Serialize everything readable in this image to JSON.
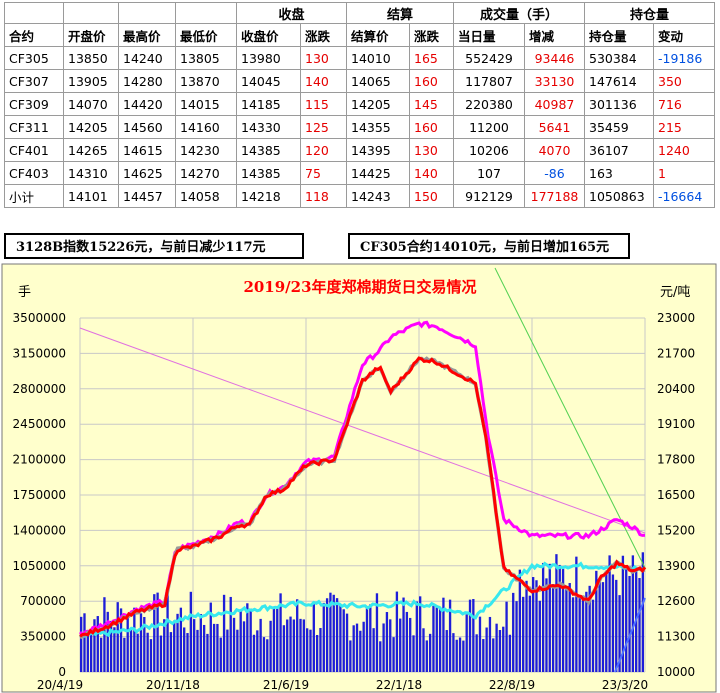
{
  "table": {
    "group_headers": [
      "收盘",
      "结算",
      "成交量（手）",
      "持仓量"
    ],
    "columns": [
      "合约",
      "开盘价",
      "最高价",
      "最低价",
      "收盘价",
      "涨跌",
      "结算价",
      "涨跌",
      "当日量",
      "增减",
      "持仓量",
      "变动"
    ],
    "rows": [
      [
        "CF305",
        "13850",
        "14240",
        "13805",
        "13980",
        "130",
        "14010",
        "165",
        "552429",
        "93446",
        "530384",
        "-19186"
      ],
      [
        "CF307",
        "13905",
        "14280",
        "13870",
        "14045",
        "140",
        "14065",
        "160",
        "117807",
        "33130",
        "147614",
        "350"
      ],
      [
        "CF309",
        "14070",
        "14420",
        "14015",
        "14185",
        "115",
        "14205",
        "145",
        "220380",
        "40987",
        "301136",
        "716"
      ],
      [
        "CF311",
        "14205",
        "14560",
        "14160",
        "14330",
        "125",
        "14355",
        "160",
        "11200",
        "5641",
        "35459",
        "215"
      ],
      [
        "CF401",
        "14265",
        "14615",
        "14230",
        "14385",
        "120",
        "14395",
        "130",
        "10206",
        "4070",
        "36107",
        "1240"
      ],
      [
        "CF403",
        "14310",
        "14625",
        "14270",
        "14385",
        "75",
        "14425",
        "140",
        "107",
        "-86",
        "163",
        "1"
      ],
      [
        "小计",
        "14101",
        "14457",
        "14058",
        "14218",
        "118",
        "14243",
        "150",
        "912129",
        "177188",
        "1050863",
        "-16664"
      ]
    ]
  },
  "notes": {
    "left": "3128B指数15226元，与前日减少117元",
    "right": "CF305合约14010元，与前日增加165元"
  },
  "chart_data": {
    "type": "line",
    "title": "2019/23年度郑棉期货日交易情况",
    "ylabel_left": "手",
    "ylabel_right": "元/吨",
    "left_ylim": [
      0,
      3500000
    ],
    "left_ticks": [
      "3500000",
      "3150000",
      "2800000",
      "2450000",
      "2100000",
      "1750000",
      "1400000",
      "1050000",
      "700000",
      "350000",
      "0"
    ],
    "right_ylim": [
      10000,
      23000
    ],
    "right_ticks": [
      "23000",
      "21700",
      "20400",
      "19100",
      "17800",
      "16500",
      "15200",
      "13900",
      "12600",
      "11300",
      "10000"
    ],
    "x_labels": [
      "20/4/19",
      "20/11/18",
      "21/6/19",
      "22/1/18",
      "22/8/19",
      "23/3/20"
    ],
    "grid": true,
    "colors": {
      "background": "#ffffcc",
      "volume_bars": "#1e1ed8",
      "close_price": "#ff0000",
      "price_pink": "#ff00ff",
      "open_interest": "#38e8ee",
      "settle": "#999999"
    },
    "series": [
      {
        "axis": "left",
        "x": [
          0,
          0.1,
          0.2,
          0.3,
          0.4,
          0.5,
          0.6,
          0.7,
          0.8,
          0.9,
          1.0
        ],
        "values": [
          350000,
          420000,
          550000,
          620000,
          680000,
          650000,
          680000,
          560000,
          1050000,
          1050000,
          1020000
        ]
      },
      {
        "axis": "right",
        "x": [
          0,
          0.05,
          0.1,
          0.15,
          0.17,
          0.2,
          0.25,
          0.28,
          0.3,
          0.33,
          0.36,
          0.4,
          0.45,
          0.5,
          0.53,
          0.55,
          0.6,
          0.63,
          0.7,
          0.72,
          0.75,
          0.8,
          0.85,
          0.9,
          0.92,
          0.95,
          0.98,
          1.0
        ],
        "values": [
          11300,
          11700,
          12200,
          12500,
          14500,
          14600,
          15000,
          15400,
          15400,
          16500,
          16700,
          17600,
          17800,
          20700,
          21200,
          20300,
          21500,
          21400,
          20600,
          18400,
          13800,
          13000,
          13200,
          12600,
          13400,
          14000,
          13700,
          13800
        ]
      },
      {
        "axis": "right",
        "x": [
          0,
          0.05,
          0.1,
          0.15,
          0.17,
          0.2,
          0.25,
          0.28,
          0.3,
          0.33,
          0.36,
          0.4,
          0.45,
          0.5,
          0.53,
          0.55,
          0.6,
          0.63,
          0.7,
          0.72,
          0.75,
          0.8,
          0.85,
          0.9,
          0.92,
          0.95,
          0.98,
          1.0
        ],
        "values": [
          11400,
          11800,
          12300,
          12600,
          14500,
          14700,
          15100,
          15500,
          15500,
          16500,
          16800,
          17700,
          17900,
          21300,
          21800,
          22300,
          22800,
          22700,
          22000,
          19000,
          15600,
          15000,
          15000,
          15000,
          15200,
          15600,
          15300,
          15000
        ]
      }
    ],
    "volume_bars": {
      "axis": "left",
      "count": 170,
      "typical_range": [
        300000,
        800000
      ],
      "late_range": [
        700000,
        1200000
      ]
    }
  }
}
